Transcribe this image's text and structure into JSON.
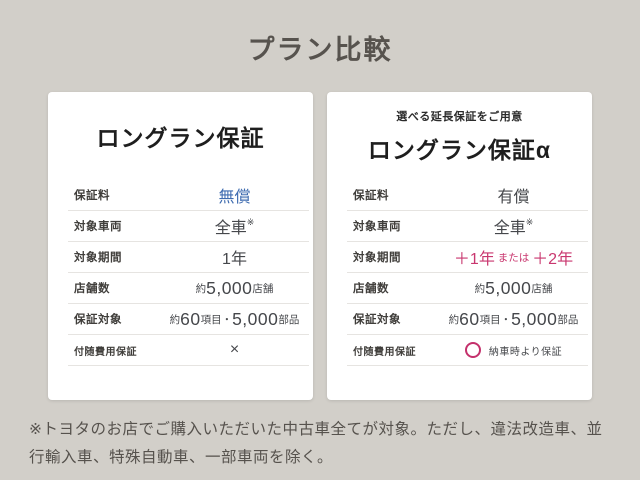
{
  "page": {
    "title": "プラン比較",
    "footnote": "※トヨタのお店でご購入いただいた中古車全てが対象。ただし、違法改造車、並行輸入車、特殊自動車、一部車両を除く。"
  },
  "colors": {
    "page_background": "#d2cfc9",
    "card_background": "#ffffff",
    "accent_blue": "#3f6cb0",
    "accent_pink": "#c9376f",
    "title_text": "#57534e"
  },
  "plans": [
    {
      "subtitle": "",
      "title": "ロングラン保証",
      "rows": [
        {
          "label": "保証料",
          "color": "blue",
          "value": [
            {
              "t": "無償",
              "size": "md"
            }
          ]
        },
        {
          "label": "対象車両",
          "value": [
            {
              "t": "全車",
              "size": "md"
            },
            {
              "t": "※",
              "size": "sup"
            }
          ]
        },
        {
          "label": "対象期間",
          "value": [
            {
              "t": "1年",
              "size": "md"
            }
          ]
        },
        {
          "label": "店舗数",
          "value": [
            {
              "t": "約",
              "size": "sm"
            },
            {
              "t": "5,000",
              "size": "lg"
            },
            {
              "t": "店舗",
              "size": "sm"
            }
          ]
        },
        {
          "label": "保証対象",
          "value": [
            {
              "t": "約",
              "size": "sm"
            },
            {
              "t": "60",
              "size": "lg"
            },
            {
              "t": "項目",
              "size": "sm"
            },
            {
              "t": "・",
              "size": "sm"
            },
            {
              "t": "5,000",
              "size": "lg"
            },
            {
              "t": "部品",
              "size": "sm"
            }
          ]
        },
        {
          "label": "付随費用保証",
          "label_small": true,
          "value": [
            {
              "t": "×",
              "size": "md"
            }
          ]
        }
      ]
    },
    {
      "subtitle": "選べる延長保証をご用意",
      "title": "ロングラン保証α",
      "rows": [
        {
          "label": "保証料",
          "value": [
            {
              "t": "有償",
              "size": "md"
            }
          ]
        },
        {
          "label": "対象車両",
          "value": [
            {
              "t": "全車",
              "size": "md"
            },
            {
              "t": "※",
              "size": "sup"
            }
          ]
        },
        {
          "label": "対象期間",
          "color": "pink",
          "value": [
            {
              "t": "＋1年",
              "size": "md"
            },
            {
              "t": " または ",
              "size": "sm"
            },
            {
              "t": "＋2年",
              "size": "md"
            }
          ]
        },
        {
          "label": "店舗数",
          "value": [
            {
              "t": "約",
              "size": "sm"
            },
            {
              "t": "5,000",
              "size": "lg"
            },
            {
              "t": "店舗",
              "size": "sm"
            }
          ]
        },
        {
          "label": "保証対象",
          "value": [
            {
              "t": "約",
              "size": "sm"
            },
            {
              "t": "60",
              "size": "lg"
            },
            {
              "t": "項目",
              "size": "sm"
            },
            {
              "t": "・",
              "size": "sm"
            },
            {
              "t": "5,000",
              "size": "lg"
            },
            {
              "t": "部品",
              "size": "sm"
            }
          ]
        },
        {
          "label": "付随費用保証",
          "label_small": true,
          "value": [
            {
              "icon": "circle-outline-icon"
            },
            {
              "t": "納車時より保証",
              "size": "xs"
            }
          ]
        }
      ]
    }
  ]
}
